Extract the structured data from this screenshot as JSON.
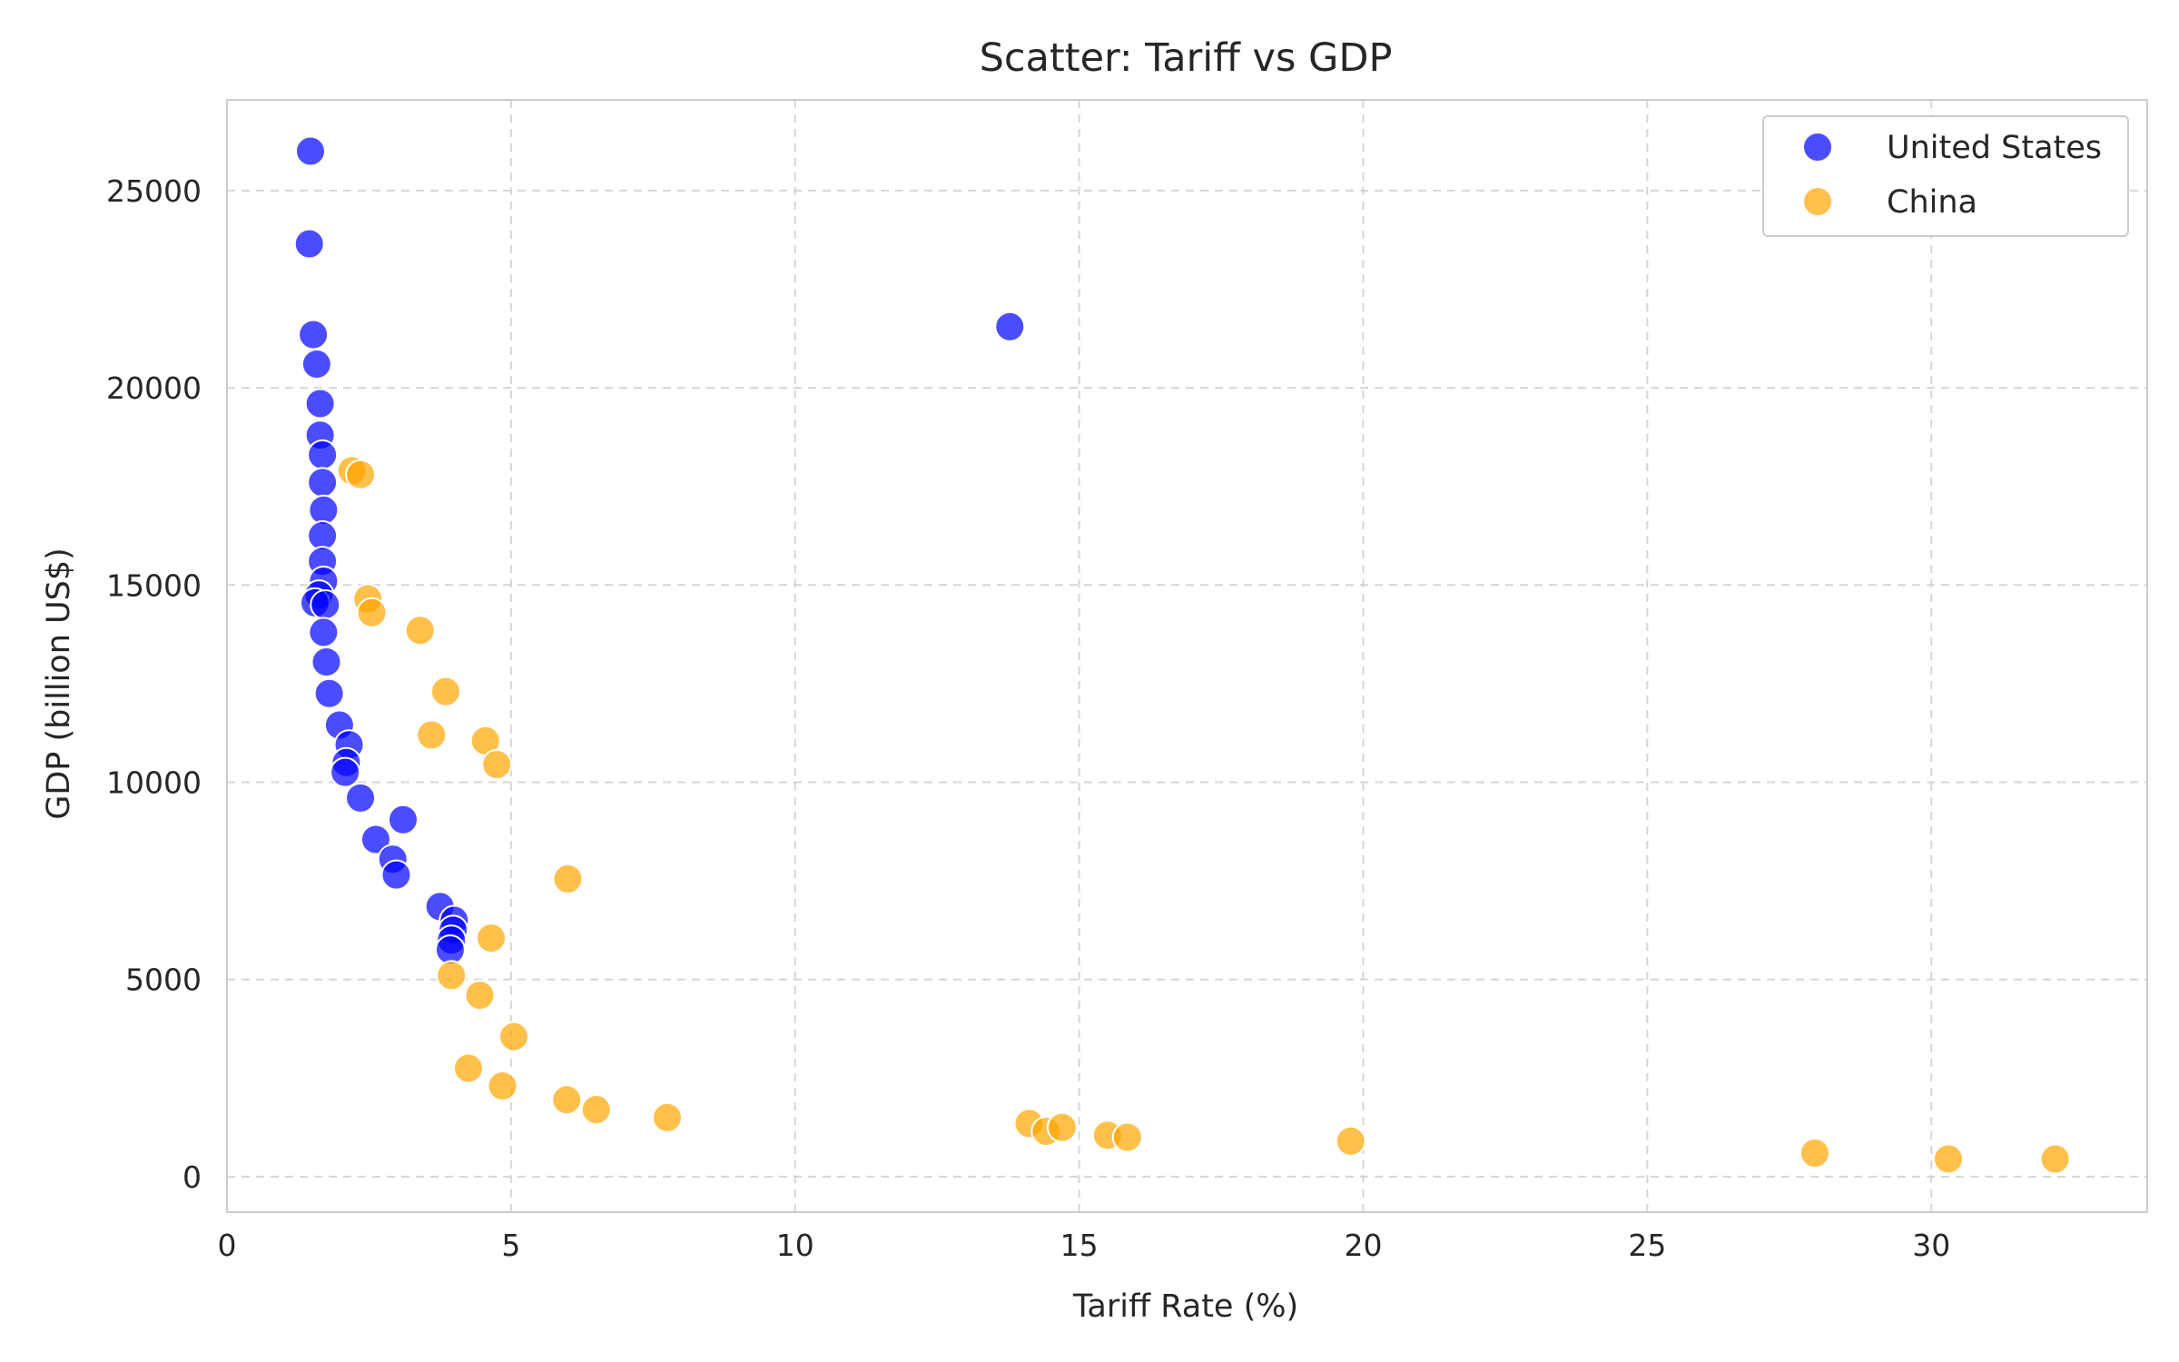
{
  "chart_data": {
    "type": "scatter",
    "title": "Scatter: Tariff vs GDP",
    "xlabel": "Tariff Rate (%)",
    "ylabel": "GDP (billion US$)",
    "xlim": [
      0,
      33.8
    ],
    "ylim": [
      -900,
      27300
    ],
    "xticks": [
      0,
      5,
      10,
      15,
      20,
      25,
      30
    ],
    "yticks": [
      0,
      5000,
      10000,
      15000,
      20000,
      25000
    ],
    "grid": true,
    "legend_position": "top-right",
    "series": [
      {
        "name": "United States",
        "color": "#0000ff",
        "points": [
          [
            1.47,
            26000
          ],
          [
            1.45,
            23650
          ],
          [
            1.52,
            21350
          ],
          [
            1.58,
            20600
          ],
          [
            1.64,
            19600
          ],
          [
            1.64,
            18800
          ],
          [
            1.68,
            18300
          ],
          [
            1.68,
            17600
          ],
          [
            1.7,
            16900
          ],
          [
            1.68,
            16250
          ],
          [
            1.68,
            15600
          ],
          [
            1.7,
            15100
          ],
          [
            1.62,
            14750
          ],
          [
            1.55,
            14550
          ],
          [
            1.73,
            14500
          ],
          [
            1.7,
            13800
          ],
          [
            1.75,
            13050
          ],
          [
            1.8,
            12250
          ],
          [
            1.98,
            11450
          ],
          [
            2.15,
            10950
          ],
          [
            2.1,
            10500
          ],
          [
            2.08,
            10250
          ],
          [
            2.35,
            9600
          ],
          [
            3.1,
            9050
          ],
          [
            2.62,
            8550
          ],
          [
            2.92,
            8050
          ],
          [
            2.98,
            7650
          ],
          [
            3.75,
            6850
          ],
          [
            4.0,
            6500
          ],
          [
            3.98,
            6250
          ],
          [
            3.95,
            6000
          ],
          [
            3.93,
            5750
          ],
          [
            13.78,
            21550
          ]
        ]
      },
      {
        "name": "China",
        "color": "#ffa500",
        "points": [
          [
            2.2,
            17900
          ],
          [
            2.35,
            17800
          ],
          [
            2.48,
            14650
          ],
          [
            2.55,
            14300
          ],
          [
            3.4,
            13850
          ],
          [
            3.85,
            12300
          ],
          [
            3.6,
            11200
          ],
          [
            4.55,
            11050
          ],
          [
            4.75,
            10450
          ],
          [
            6.0,
            7550
          ],
          [
            4.65,
            6050
          ],
          [
            3.95,
            5100
          ],
          [
            4.45,
            4600
          ],
          [
            5.05,
            3550
          ],
          [
            4.25,
            2750
          ],
          [
            4.85,
            2300
          ],
          [
            5.98,
            1950
          ],
          [
            6.5,
            1700
          ],
          [
            7.75,
            1500
          ],
          [
            14.12,
            1350
          ],
          [
            14.42,
            1150
          ],
          [
            14.7,
            1250
          ],
          [
            15.5,
            1050
          ],
          [
            15.85,
            1000
          ],
          [
            19.78,
            900
          ],
          [
            27.95,
            600
          ],
          [
            30.3,
            450
          ],
          [
            32.18,
            450
          ]
        ]
      }
    ]
  }
}
